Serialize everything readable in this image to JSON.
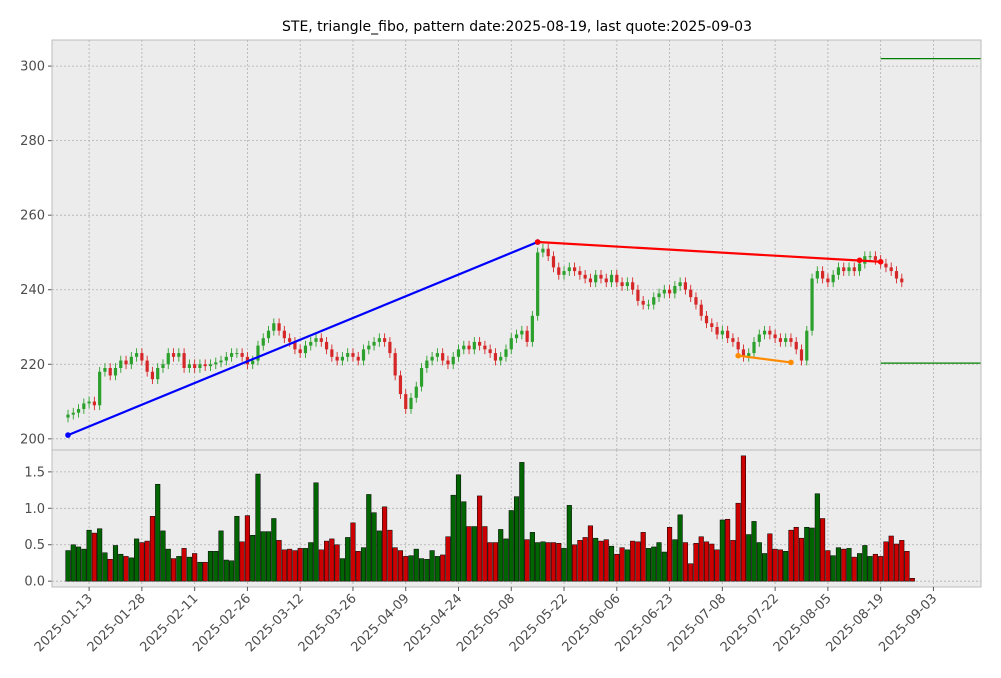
{
  "title": "STE, triangle_fibo, pattern date:2025-08-19, last quote:2025-09-03",
  "colors": {
    "up": "#2ca02c",
    "down": "#d62728",
    "volume_up": "#006400",
    "volume_down": "#cc0000",
    "trend_blue": "#0000ff",
    "trend_red": "#ff0000",
    "trend_orange": "#ff8c00",
    "level_green": "#008000",
    "panel_bg": "#ececec",
    "grid": "#b0b0b0"
  },
  "chart_data": {
    "type": "candlestick",
    "price_panel": {
      "ylim": [
        197,
        307
      ],
      "yticks": [
        200,
        220,
        240,
        260,
        280,
        300
      ],
      "grid": true,
      "close": [
        206.5,
        207,
        208,
        209.5,
        210,
        209,
        218,
        219,
        217,
        219,
        221,
        220,
        222,
        223,
        221,
        218,
        216,
        219,
        220,
        223,
        222,
        223,
        219,
        220,
        219,
        220,
        219.5,
        220,
        220.5,
        221,
        222,
        223,
        223,
        222,
        220,
        221,
        225,
        227,
        229,
        231,
        229,
        227,
        226,
        224,
        223,
        225,
        226,
        227,
        226,
        224,
        222,
        221,
        222,
        223,
        222,
        221,
        224,
        225,
        226,
        227,
        226,
        223,
        217,
        212,
        208,
        211,
        214,
        219,
        221,
        222,
        223,
        221,
        220,
        222,
        224,
        225,
        224,
        226,
        225,
        224,
        223,
        221,
        222,
        224,
        227,
        228,
        229,
        226,
        233,
        250,
        251,
        249,
        246,
        244,
        245,
        246,
        245,
        244,
        243,
        242,
        244,
        243,
        242,
        244,
        242,
        241,
        242,
        240,
        237,
        236,
        236,
        238,
        239,
        240,
        239,
        241,
        242,
        240,
        238,
        236,
        233,
        231,
        230,
        228,
        229,
        227,
        226,
        224,
        222,
        223,
        226,
        228,
        229,
        228,
        227,
        226,
        227,
        226,
        224,
        221,
        229,
        243,
        245,
        243,
        242,
        244,
        246,
        245,
        246,
        245,
        247,
        249,
        249,
        248,
        247,
        246,
        245,
        243,
        242
      ],
      "lines": [
        {
          "name": "blue-line",
          "color": "#0000ff",
          "points": [
            [
              0,
              201
            ],
            [
              89,
              252.8
            ]
          ]
        },
        {
          "name": "red-line",
          "color": "#ff0000",
          "points": [
            [
              89,
              252.8
            ],
            [
              154,
              247.5
            ]
          ]
        },
        {
          "name": "orange-line",
          "color": "#ff8c00",
          "points": [
            [
              127,
              222.3
            ],
            [
              137,
              220.5
            ]
          ]
        },
        {
          "name": "level-upper",
          "color": "#008000",
          "points": [
            [
              154,
              302
            ],
            [
              173,
              302
            ]
          ]
        },
        {
          "name": "level-lower",
          "color": "#008000",
          "points": [
            [
              154,
              220.3
            ],
            [
              173,
              220.3
            ]
          ]
        }
      ],
      "extra_points": [
        {
          "idx": 150,
          "y": 247.9,
          "color": "#ff0000"
        }
      ]
    },
    "volume_panel": {
      "ylim": [
        -0.08,
        1.8
      ],
      "yticks": [
        0.0,
        0.5,
        1.0,
        1.5
      ],
      "tick_labels": [
        "0.0",
        "0.5",
        "1.0",
        "1.5"
      ],
      "grid": true,
      "values": [
        0.42,
        0.5,
        0.47,
        0.44,
        0.7,
        0.66,
        0.72,
        0.39,
        0.3,
        0.49,
        0.37,
        0.34,
        0.32,
        0.58,
        0.53,
        0.55,
        0.89,
        1.33,
        0.69,
        0.44,
        0.31,
        0.34,
        0.45,
        0.33,
        0.38,
        0.26,
        0.26,
        0.41,
        0.41,
        0.69,
        0.29,
        0.28,
        0.89,
        0.54,
        0.9,
        0.63,
        1.47,
        0.68,
        0.68,
        0.86,
        0.56,
        0.43,
        0.44,
        0.42,
        0.45,
        0.45,
        0.53,
        1.35,
        0.43,
        0.55,
        0.58,
        0.5,
        0.31,
        0.6,
        0.8,
        0.41,
        0.46,
        1.19,
        0.94,
        0.69,
        1.02,
        0.7,
        0.46,
        0.42,
        0.34,
        0.35,
        0.44,
        0.31,
        0.3,
        0.42,
        0.34,
        0.36,
        0.61,
        1.18,
        1.46,
        1.09,
        0.75,
        0.75,
        1.17,
        0.75,
        0.53,
        0.53,
        0.71,
        0.58,
        0.97,
        1.16,
        1.63,
        0.57,
        0.67,
        0.53,
        0.54,
        0.53,
        0.53,
        0.52,
        0.45,
        1.04,
        0.5,
        0.56,
        0.6,
        0.76,
        0.59,
        0.55,
        0.57,
        0.48,
        0.37,
        0.46,
        0.43,
        0.55,
        0.54,
        0.67,
        0.45,
        0.47,
        0.53,
        0.4,
        0.74,
        0.57,
        0.91,
        0.53,
        0.24,
        0.52,
        0.61,
        0.54,
        0.51,
        0.43,
        0.84,
        0.85,
        0.56,
        1.07,
        1.72,
        0.64,
        0.82,
        0.53,
        0.38,
        0.65,
        0.44,
        0.43,
        0.41,
        0.7,
        0.74,
        0.59,
        0.74,
        0.73,
        1.2,
        0.86,
        0.42,
        0.35,
        0.46,
        0.44,
        0.45,
        0.33,
        0.38,
        0.49,
        0.34,
        0.37,
        0.34,
        0.54,
        0.62,
        0.51,
        0.56,
        0.41,
        0.04
      ]
    },
    "x_labels": [
      "2025-01-13",
      "2025-01-28",
      "2025-02-11",
      "2025-02-26",
      "2025-03-12",
      "2025-03-26",
      "2025-04-09",
      "2025-04-24",
      "2025-05-08",
      "2025-05-22",
      "2025-06-06",
      "2025-06-23",
      "2025-07-08",
      "2025-07-22",
      "2025-08-05",
      "2025-08-19",
      "2025-09-03"
    ],
    "x_label_idx": [
      4,
      14,
      24,
      34,
      44,
      54,
      64,
      74,
      84,
      94,
      104,
      114,
      124,
      134,
      144,
      154,
      164
    ]
  }
}
